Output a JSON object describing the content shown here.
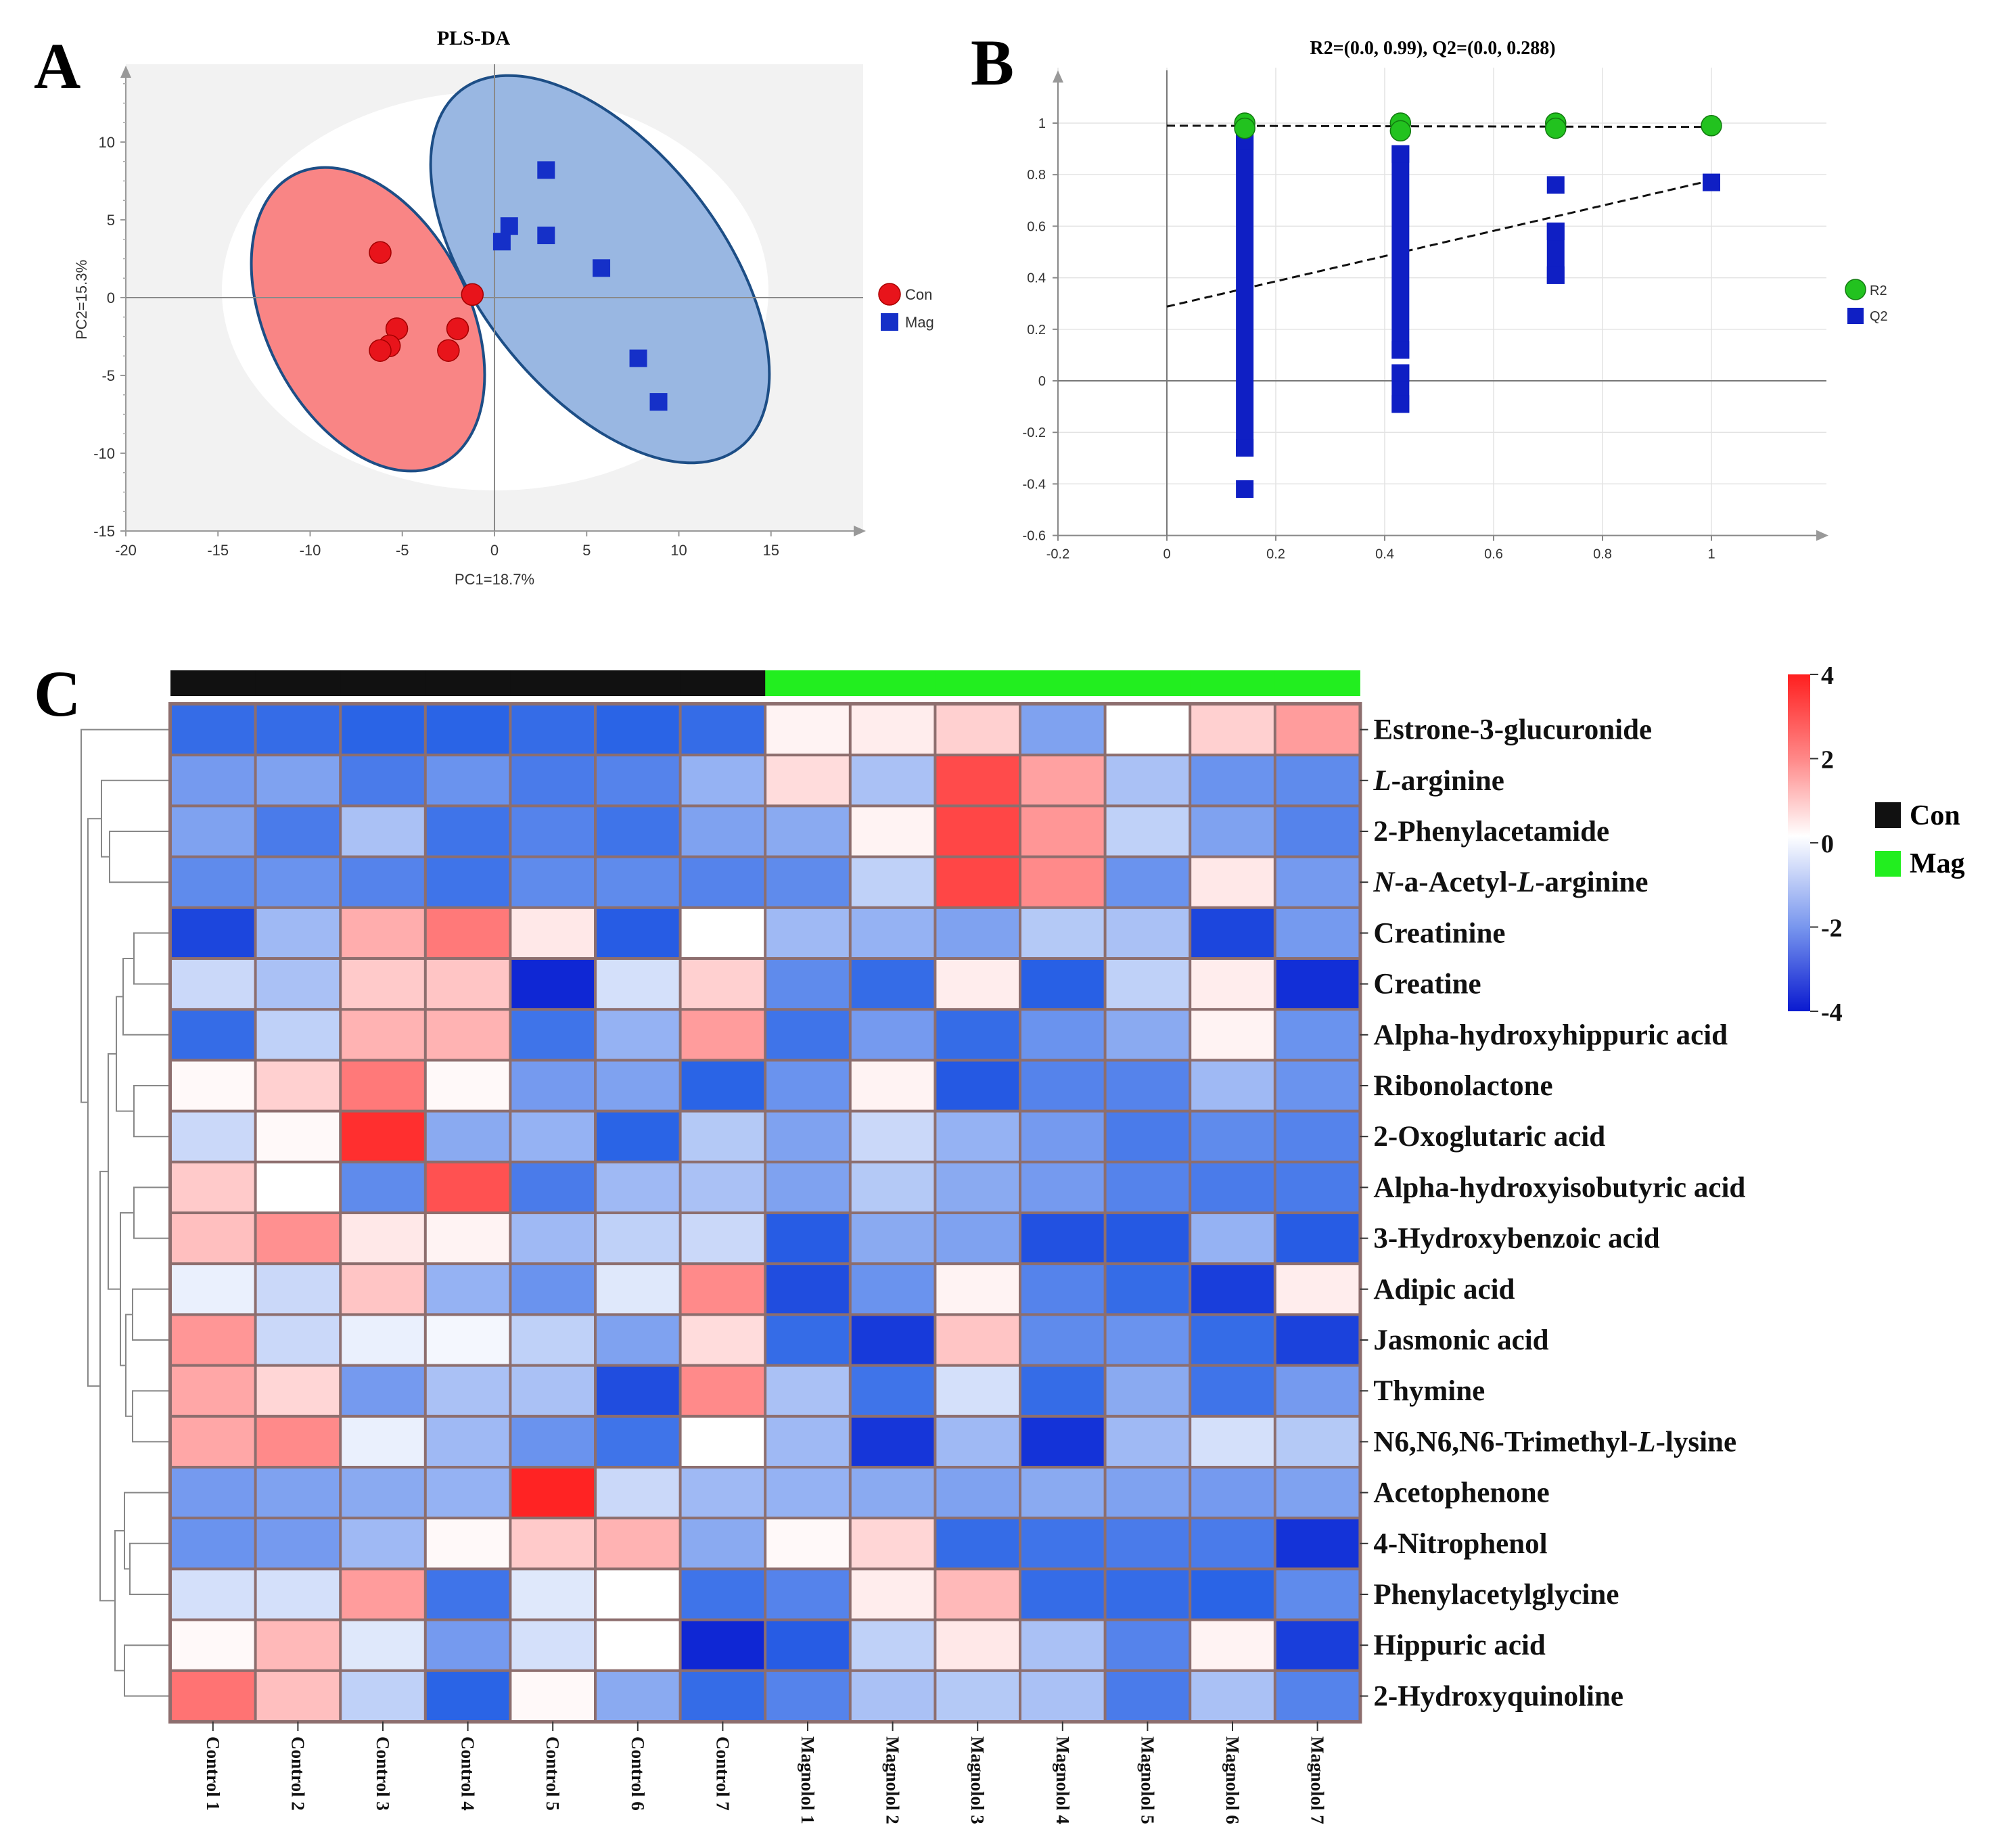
{
  "panels": {
    "A": "A",
    "B": "B",
    "C": "C"
  },
  "chart_data": [
    {
      "type": "scatter",
      "id": "pls-da",
      "title": "PLS-DA",
      "xlabel": "PC1=18.7%",
      "ylabel": "PC2=15.3%",
      "xlim": [
        -20,
        20
      ],
      "ylim": [
        -15,
        15
      ],
      "xticks": [
        -20,
        -15,
        -10,
        -5,
        0,
        5,
        10,
        15
      ],
      "yticks": [
        -15,
        -10,
        -5,
        0,
        5,
        10
      ],
      "legend": [
        "Con",
        "Mag"
      ],
      "colors": {
        "Con": "#e8141b",
        "Mag": "#1530c8",
        "con_ellipse": "#f98585",
        "mag_ellipse": "#99b7e2",
        "t2": "#ffffff",
        "bg": "#f2f2f2"
      },
      "series": [
        {
          "name": "Con",
          "points": [
            [
              -6.2,
              2.9
            ],
            [
              -1.2,
              0.2
            ],
            [
              -5.3,
              -2.0
            ],
            [
              -2.0,
              -2.0
            ],
            [
              -5.7,
              -3.1
            ],
            [
              -6.2,
              -3.4
            ],
            [
              -2.5,
              -3.4
            ]
          ]
        },
        {
          "name": "Mag",
          "points": [
            [
              2.8,
              8.2
            ],
            [
              0.8,
              4.6
            ],
            [
              0.4,
              3.6
            ],
            [
              2.8,
              4.0
            ],
            [
              5.8,
              1.9
            ],
            [
              7.8,
              -3.9
            ],
            [
              8.9,
              -6.7
            ]
          ]
        }
      ]
    },
    {
      "type": "scatter",
      "id": "permutation",
      "title": "R2=(0.0, 0.99), Q2=(0.0, 0.288)",
      "xlim": [
        -0.2,
        1.2
      ],
      "ylim": [
        -0.6,
        1.15
      ],
      "xticks": [
        -0.2,
        0,
        0.2,
        0.4,
        0.6,
        0.8,
        1
      ],
      "yticks": [
        -0.6,
        -0.4,
        -0.2,
        0,
        0.2,
        0.4,
        0.6,
        0.8,
        1
      ],
      "legend": [
        "R2",
        "Q2"
      ],
      "colors": {
        "R2": "#22c21f",
        "Q2": "#0f1fc4"
      },
      "R2": {
        "x": [
          0.143,
          0.143,
          0.429,
          0.429,
          0.714,
          0.714,
          1.0
        ],
        "y": [
          1.0,
          0.98,
          1.0,
          0.97,
          1.0,
          0.98,
          0.99
        ]
      },
      "Q2": {
        "x": [
          1.0,
          0.714,
          0.714,
          0.714,
          0.429,
          0.429,
          0.429,
          0.429,
          0.143,
          0.143,
          0.143
        ],
        "y": [
          0.77,
          0.76,
          0.58,
          0.41,
          0.88,
          0.12,
          0.03,
          -0.09,
          0.93,
          -0.26,
          -0.42
        ],
        "bars": [
          {
            "x": 0.143,
            "from": -0.26,
            "to": 0.93
          },
          {
            "x": 0.429,
            "from": 0.12,
            "to": 0.88
          },
          {
            "x": 0.429,
            "from": -0.09,
            "to": 0.03
          },
          {
            "x": 0.714,
            "from": 0.41,
            "to": 0.58
          }
        ]
      },
      "r2_line": {
        "intercept": 0.99,
        "slope": -0.005
      },
      "q2_line": {
        "intercept": 0.288,
        "slope": 0.49
      }
    },
    {
      "type": "heatmap",
      "id": "heatmap",
      "columns": [
        "Control 1",
        "Control 2",
        "Control 3",
        "Control 4",
        "Control 5",
        "Control 6",
        "Control 7",
        "Magnolol 1",
        "Magnolol 2",
        "Magnolol 3",
        "Magnolol 4",
        "Magnolol 5",
        "Magnolol 6",
        "Magnolol 7"
      ],
      "groups": [
        "Con",
        "Con",
        "Con",
        "Con",
        "Con",
        "Con",
        "Con",
        "Mag",
        "Mag",
        "Mag",
        "Mag",
        "Mag",
        "Mag",
        "Mag"
      ],
      "group_colors": {
        "Con": "#111111",
        "Mag": "#22ee1f"
      },
      "legend": [
        "Con",
        "Mag"
      ],
      "colorbar": {
        "min": -4,
        "max": 4,
        "ticks": [
          "4",
          "2",
          "0",
          "-2",
          "-4"
        ]
      },
      "rows": [
        "Estrone-3-glucuronide",
        "L-arginine",
        "2-Phenylacetamide",
        "N-a-Acetyl-L-arginine",
        "Creatinine",
        "Creatine",
        "Alpha-hydroxyhippuric acid",
        "Ribonolactone",
        "2-Oxoglutaric acid",
        "Alpha-hydroxyisobutyric acid",
        "3-Hydroxybenzoic acid",
        "Adipic acid",
        "Jasmonic acid",
        "Thymine",
        "N6,N6,N6-Trimethyl-L-lysine",
        "Acetophenone",
        "4-Nitrophenol",
        "Phenylacetylglycine",
        "Hippuric acid",
        "2-Hydroxyquinoline"
      ],
      "values": [
        [
          -1.9,
          -1.9,
          -2.0,
          -2.0,
          -1.9,
          -2.0,
          -1.9,
          0.2,
          0.3,
          0.8,
          -1.2,
          0.0,
          0.8,
          1.7
        ],
        [
          -1.3,
          -1.2,
          -1.7,
          -1.4,
          -1.7,
          -1.6,
          -1.0,
          0.6,
          -0.8,
          3.1,
          1.6,
          -0.8,
          -1.4,
          -1.5
        ],
        [
          -1.2,
          -1.7,
          -0.8,
          -1.8,
          -1.6,
          -1.8,
          -1.2,
          -1.1,
          0.2,
          3.2,
          1.8,
          -0.6,
          -1.2,
          -1.6
        ],
        [
          -1.5,
          -1.4,
          -1.6,
          -1.8,
          -1.5,
          -1.5,
          -1.6,
          -1.5,
          -0.6,
          3.2,
          2.0,
          -1.4,
          0.4,
          -1.3
        ],
        [
          -2.8,
          -0.9,
          1.4,
          2.3,
          0.4,
          -2.2,
          0.0,
          -0.9,
          -1.0,
          -1.2,
          -0.7,
          -0.8,
          -2.8,
          -1.3
        ],
        [
          -0.5,
          -0.8,
          0.9,
          1.0,
          -3.6,
          -0.4,
          0.8,
          -1.5,
          -1.9,
          0.3,
          -2.1,
          -0.6,
          0.3,
          -3.4
        ],
        [
          -1.9,
          -0.6,
          1.3,
          1.3,
          -1.8,
          -1.0,
          1.7,
          -1.8,
          -1.3,
          -1.9,
          -1.4,
          -1.1,
          0.2,
          -1.4
        ],
        [
          0.1,
          0.8,
          2.3,
          0.1,
          -1.3,
          -1.2,
          -2.0,
          -1.4,
          0.2,
          -2.3,
          -1.6,
          -1.6,
          -0.9,
          -1.4
        ],
        [
          -0.5,
          0.1,
          3.6,
          -1.1,
          -1.0,
          -2.0,
          -0.7,
          -1.2,
          -0.5,
          -1.0,
          -1.3,
          -1.7,
          -1.5,
          -1.6
        ],
        [
          0.9,
          0.0,
          -1.5,
          3.0,
          -1.7,
          -0.9,
          -0.8,
          -1.2,
          -0.7,
          -1.1,
          -1.3,
          -1.6,
          -1.7,
          -1.7
        ],
        [
          1.1,
          1.9,
          0.4,
          0.2,
          -0.9,
          -0.6,
          -0.5,
          -2.2,
          -1.1,
          -1.2,
          -2.5,
          -2.3,
          -1.0,
          -2.2
        ],
        [
          -0.2,
          -0.5,
          1.0,
          -1.0,
          -1.4,
          -0.3,
          2.0,
          -2.6,
          -1.4,
          0.2,
          -1.6,
          -1.9,
          -3.0,
          0.3
        ],
        [
          1.8,
          -0.5,
          -0.2,
          -0.1,
          -0.6,
          -1.2,
          0.6,
          -1.9,
          -3.1,
          1.0,
          -1.5,
          -1.4,
          -1.9,
          -2.9
        ],
        [
          1.5,
          0.7,
          -1.3,
          -0.8,
          -0.8,
          -2.6,
          2.0,
          -0.8,
          -1.8,
          -0.4,
          -1.9,
          -1.1,
          -1.8,
          -1.3
        ],
        [
          1.5,
          2.0,
          -0.2,
          -0.9,
          -1.4,
          -1.8,
          0.0,
          -0.9,
          -3.2,
          -0.9,
          -3.3,
          -0.9,
          -0.4,
          -0.7
        ],
        [
          -1.3,
          -1.2,
          -1.1,
          -1.0,
          3.8,
          -0.5,
          -0.9,
          -1.0,
          -1.1,
          -1.2,
          -1.1,
          -1.2,
          -1.3,
          -1.2
        ],
        [
          -1.4,
          -1.3,
          -0.9,
          0.1,
          0.9,
          1.3,
          -1.1,
          0.1,
          0.7,
          -1.9,
          -1.8,
          -1.7,
          -1.7,
          -3.3
        ],
        [
          -0.4,
          -0.4,
          1.7,
          -1.8,
          -0.3,
          0.0,
          -1.8,
          -1.6,
          0.3,
          1.2,
          -1.9,
          -1.9,
          -2.0,
          -1.5
        ],
        [
          0.1,
          1.2,
          -0.3,
          -1.3,
          -0.4,
          0.0,
          -3.6,
          -2.2,
          -0.6,
          0.4,
          -0.8,
          -1.6,
          0.2,
          -3.0
        ],
        [
          2.4,
          1.1,
          -0.6,
          -2.0,
          0.1,
          -1.1,
          -1.9,
          -1.6,
          -0.8,
          -0.7,
          -0.8,
          -1.7,
          -0.8,
          -1.6
        ]
      ]
    }
  ]
}
